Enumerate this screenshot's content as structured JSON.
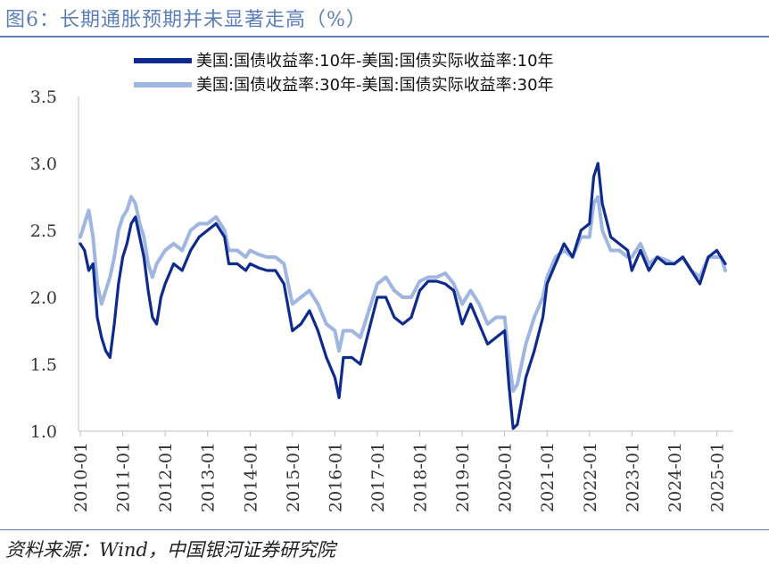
{
  "figure": {
    "title": "图6：长期通胀预期并未显著走高（%）",
    "source": "资料来源：Wind，中国银河证券研究院"
  },
  "chart_data": {
    "type": "line",
    "title": "",
    "xlabel": "",
    "ylabel": "",
    "ylim": [
      1.0,
      3.5
    ],
    "yticks": [
      "1.0",
      "1.5",
      "2.0",
      "2.5",
      "3.0",
      "3.5"
    ],
    "xticks": [
      "2010-01",
      "2011-01",
      "2012-01",
      "2013-01",
      "2014-01",
      "2015-01",
      "2016-01",
      "2017-01",
      "2018-01",
      "2019-01",
      "2020-01",
      "2021-01",
      "2022-01",
      "2023-01",
      "2024-01",
      "2025-01"
    ],
    "grid": false,
    "legend_position": "top",
    "x": [
      2010.0,
      2010.1,
      2010.2,
      2010.3,
      2010.4,
      2010.5,
      2010.6,
      2010.7,
      2010.8,
      2010.9,
      2011.0,
      2011.1,
      2011.2,
      2011.3,
      2011.4,
      2011.5,
      2011.6,
      2011.7,
      2011.8,
      2011.9,
      2012.0,
      2012.2,
      2012.4,
      2012.6,
      2012.8,
      2013.0,
      2013.2,
      2013.4,
      2013.5,
      2013.7,
      2013.9,
      2014.0,
      2014.2,
      2014.4,
      2014.6,
      2014.8,
      2015.0,
      2015.2,
      2015.4,
      2015.6,
      2015.8,
      2016.0,
      2016.1,
      2016.2,
      2016.4,
      2016.6,
      2016.8,
      2017.0,
      2017.2,
      2017.4,
      2017.6,
      2017.8,
      2018.0,
      2018.2,
      2018.4,
      2018.6,
      2018.8,
      2019.0,
      2019.2,
      2019.4,
      2019.6,
      2019.8,
      2020.0,
      2020.1,
      2020.2,
      2020.3,
      2020.5,
      2020.7,
      2020.9,
      2021.0,
      2021.2,
      2021.4,
      2021.6,
      2021.8,
      2022.0,
      2022.1,
      2022.2,
      2022.3,
      2022.5,
      2022.7,
      2022.9,
      2023.0,
      2023.2,
      2023.4,
      2023.6,
      2023.8,
      2024.0,
      2024.2,
      2024.4,
      2024.6,
      2024.8,
      2025.0,
      2025.1,
      2025.2
    ],
    "series": [
      {
        "name": "美国:国债收益率:10年-美国:国债实际收益率:10年",
        "color": "#0e2a8c",
        "values": [
          2.4,
          2.35,
          2.2,
          2.25,
          1.85,
          1.7,
          1.6,
          1.55,
          1.8,
          2.1,
          2.3,
          2.4,
          2.55,
          2.6,
          2.45,
          2.3,
          2.05,
          1.85,
          1.8,
          2.0,
          2.1,
          2.25,
          2.2,
          2.35,
          2.45,
          2.5,
          2.55,
          2.45,
          2.25,
          2.25,
          2.2,
          2.25,
          2.22,
          2.2,
          2.2,
          2.1,
          1.75,
          1.8,
          1.9,
          1.75,
          1.55,
          1.4,
          1.25,
          1.55,
          1.55,
          1.5,
          1.75,
          2.0,
          2.0,
          1.85,
          1.8,
          1.85,
          2.05,
          2.12,
          2.12,
          2.1,
          2.05,
          1.8,
          1.95,
          1.8,
          1.65,
          1.7,
          1.75,
          1.35,
          1.02,
          1.05,
          1.4,
          1.6,
          1.85,
          2.1,
          2.25,
          2.4,
          2.3,
          2.5,
          2.55,
          2.9,
          3.0,
          2.7,
          2.45,
          2.4,
          2.35,
          2.2,
          2.35,
          2.2,
          2.3,
          2.25,
          2.25,
          2.3,
          2.2,
          2.1,
          2.3,
          2.35,
          2.3,
          2.25
        ]
      },
      {
        "name": "美国:国债收益率:30年-美国:国债实际收益率:30年",
        "color": "#9fb6e0",
        "values": [
          2.45,
          2.55,
          2.65,
          2.45,
          2.1,
          1.95,
          2.05,
          2.15,
          2.3,
          2.5,
          2.6,
          2.65,
          2.75,
          2.7,
          2.55,
          2.45,
          2.25,
          2.15,
          2.25,
          2.3,
          2.35,
          2.4,
          2.35,
          2.5,
          2.55,
          2.55,
          2.6,
          2.5,
          2.35,
          2.35,
          2.3,
          2.35,
          2.32,
          2.3,
          2.3,
          2.25,
          1.95,
          2.0,
          2.05,
          1.95,
          1.8,
          1.75,
          1.6,
          1.75,
          1.75,
          1.7,
          1.9,
          2.1,
          2.15,
          2.05,
          2.0,
          2.0,
          2.12,
          2.15,
          2.15,
          2.18,
          2.1,
          1.95,
          2.05,
          1.95,
          1.8,
          1.85,
          1.85,
          1.55,
          1.3,
          1.35,
          1.65,
          1.85,
          2.0,
          2.15,
          2.3,
          2.35,
          2.3,
          2.45,
          2.45,
          2.7,
          2.75,
          2.5,
          2.35,
          2.35,
          2.3,
          2.3,
          2.4,
          2.25,
          2.3,
          2.28,
          2.25,
          2.3,
          2.2,
          2.15,
          2.3,
          2.3,
          2.3,
          2.2
        ]
      }
    ]
  }
}
